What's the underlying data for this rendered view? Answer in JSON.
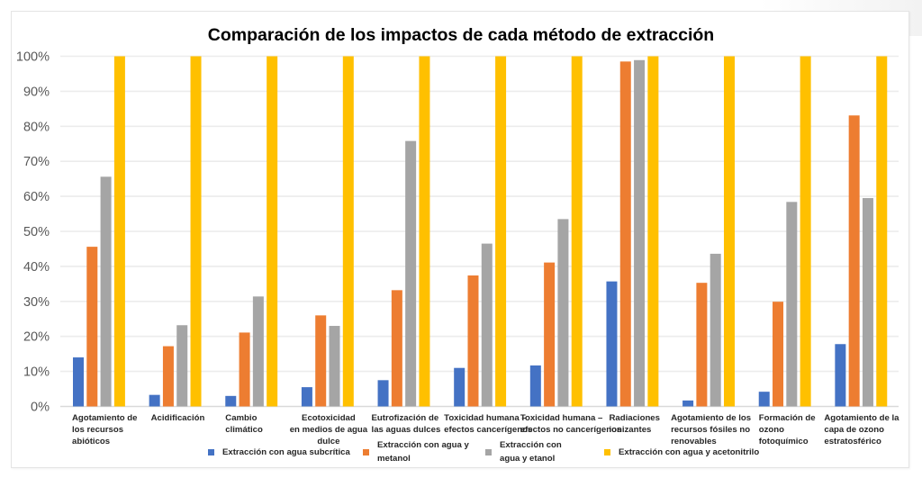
{
  "chart_data": {
    "type": "bar",
    "title": "Comparación de los impactos de cada método de extracción",
    "xlabel": "",
    "ylabel": "",
    "ylim": [
      0,
      100
    ],
    "y_ticks": [
      "0%",
      "10%",
      "20%",
      "30%",
      "40%",
      "50%",
      "60%",
      "70%",
      "80%",
      "90%",
      "100%"
    ],
    "grid": true,
    "legend_position": "bottom",
    "categories": [
      "Agotamiento de\nlos recursos\nabióticos",
      "Acidificación",
      "Cambio\nclimático",
      "Ecotoxicidad\nen medios de agua\ndulce",
      "Eutrofización de\nlas aguas dulces",
      "Toxicidad humana –\nefectos cancerígenos",
      "Toxicidad humana –\nefectos no cancerígenos",
      "Radiaciones\nionizantes",
      "Agotamiento de los\nrecursos fósiles no\nrenovables",
      "Formación de\nozono\nfotoquímico",
      "Agotamiento de la\ncapa de ozono\nestratosférico"
    ],
    "series": [
      {
        "name": "Extracción con agua subcrítica",
        "legend_label": "Extracción con agua subcrítica",
        "color": "#4472C4",
        "values": [
          14,
          3.3,
          3,
          5.5,
          7.5,
          11,
          11.7,
          35.7,
          1.7,
          4.2,
          17.8
        ]
      },
      {
        "name": "Extracción con agua y metanol",
        "legend_label": "Extracción con agua y\nmetanol",
        "color": "#ED7D31",
        "values": [
          45.6,
          17.2,
          21.1,
          26,
          33.2,
          37.4,
          41.1,
          98.5,
          35.3,
          29.9,
          83.1
        ]
      },
      {
        "name": "Extracción con agua y etanol",
        "legend_label": "Extracción con\nagua y etanol",
        "color": "#A5A5A5",
        "values": [
          65.6,
          23.2,
          31.4,
          23,
          75.8,
          46.5,
          53.5,
          98.9,
          43.6,
          58.4,
          59.5
        ]
      },
      {
        "name": "Extracción con agua y acetonitrilo",
        "legend_label": "Extracción con agua y acetonitrilo",
        "color": "#FFC000",
        "values": [
          100,
          100,
          100,
          100,
          100,
          100,
          100,
          100,
          100,
          100,
          100
        ]
      }
    ]
  }
}
